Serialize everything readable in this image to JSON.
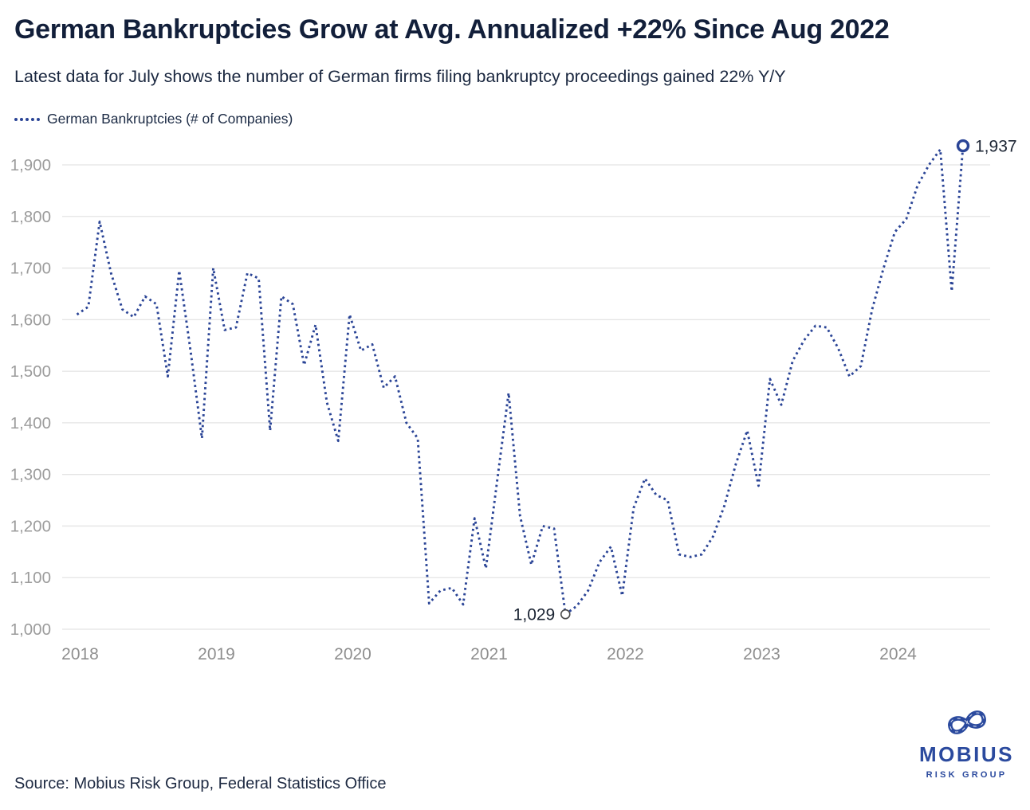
{
  "header": {
    "title": "German Bankruptcies Grow at Avg. Annualized +22% Since Aug 2022",
    "subtitle": "Latest data for July shows the number of German firms filing bankruptcy proceedings gained 22% Y/Y"
  },
  "legend": {
    "label": "German Bankruptcies (# of Companies)"
  },
  "chart_data": {
    "type": "line",
    "style": "dotted",
    "line_color": "#2a4496",
    "grid": "horizontal",
    "legend_position": "top-left",
    "series": [
      {
        "name": "German Bankruptcies (# of Companies)",
        "start": "2018-01",
        "frequency": "monthly",
        "values": [
          1610,
          1625,
          1790,
          1690,
          1620,
          1605,
          1645,
          1630,
          1490,
          1695,
          1540,
          1370,
          1700,
          1580,
          1585,
          1690,
          1680,
          1385,
          1645,
          1630,
          1512,
          1590,
          1440,
          1365,
          1610,
          1540,
          1552,
          1468,
          1490,
          1400,
          1370,
          1050,
          1075,
          1080,
          1048,
          1215,
          1118,
          1290,
          1458,
          1220,
          1125,
          1200,
          1195,
          1029,
          1045,
          1075,
          1130,
          1160,
          1065,
          1235,
          1292,
          1260,
          1250,
          1145,
          1140,
          1145,
          1180,
          1240,
          1320,
          1385,
          1278,
          1485,
          1435,
          1520,
          1560,
          1588,
          1585,
          1545,
          1490,
          1510,
          1620,
          1700,
          1770,
          1795,
          1860,
          1900,
          1930,
          1655,
          1937
        ]
      }
    ],
    "x_ticks": [
      "2018",
      "2019",
      "2020",
      "2021",
      "2022",
      "2023",
      "2024"
    ],
    "y_ticks": [
      1900,
      1800,
      1700,
      1600,
      1500,
      1400,
      1300,
      1200,
      1100,
      1000
    ],
    "y_tick_labels": [
      "1,900",
      "1,800",
      "1,700",
      "1,600",
      "1,500",
      "1,400",
      "1,300",
      "1,200",
      "1,100",
      "1,000"
    ],
    "ylim": [
      1000,
      1900
    ],
    "annotations": [
      {
        "month": "2021-08",
        "index": 43,
        "value": 1029,
        "label": "1,029",
        "marker": "open-circle-gray",
        "label_side": "left"
      },
      {
        "month": "2024-07",
        "index": 78,
        "value": 1937,
        "label": "1,937",
        "marker": "open-circle-blue",
        "label_side": "right"
      }
    ]
  },
  "source": {
    "text": "Source: Mobius Risk Group, Federal Statistics Office"
  },
  "logo": {
    "symbol": "mobius-infinity",
    "name": "MOBIUS",
    "subtitle": "RISK GROUP"
  },
  "colors": {
    "title": "#121f3a",
    "axis_labels": "#9c9c9c",
    "gridline": "#e4e4e4",
    "annotation_text": "#1b2433",
    "accent_navy": "#2a4496",
    "logo_navy": "#2b4a9e"
  }
}
